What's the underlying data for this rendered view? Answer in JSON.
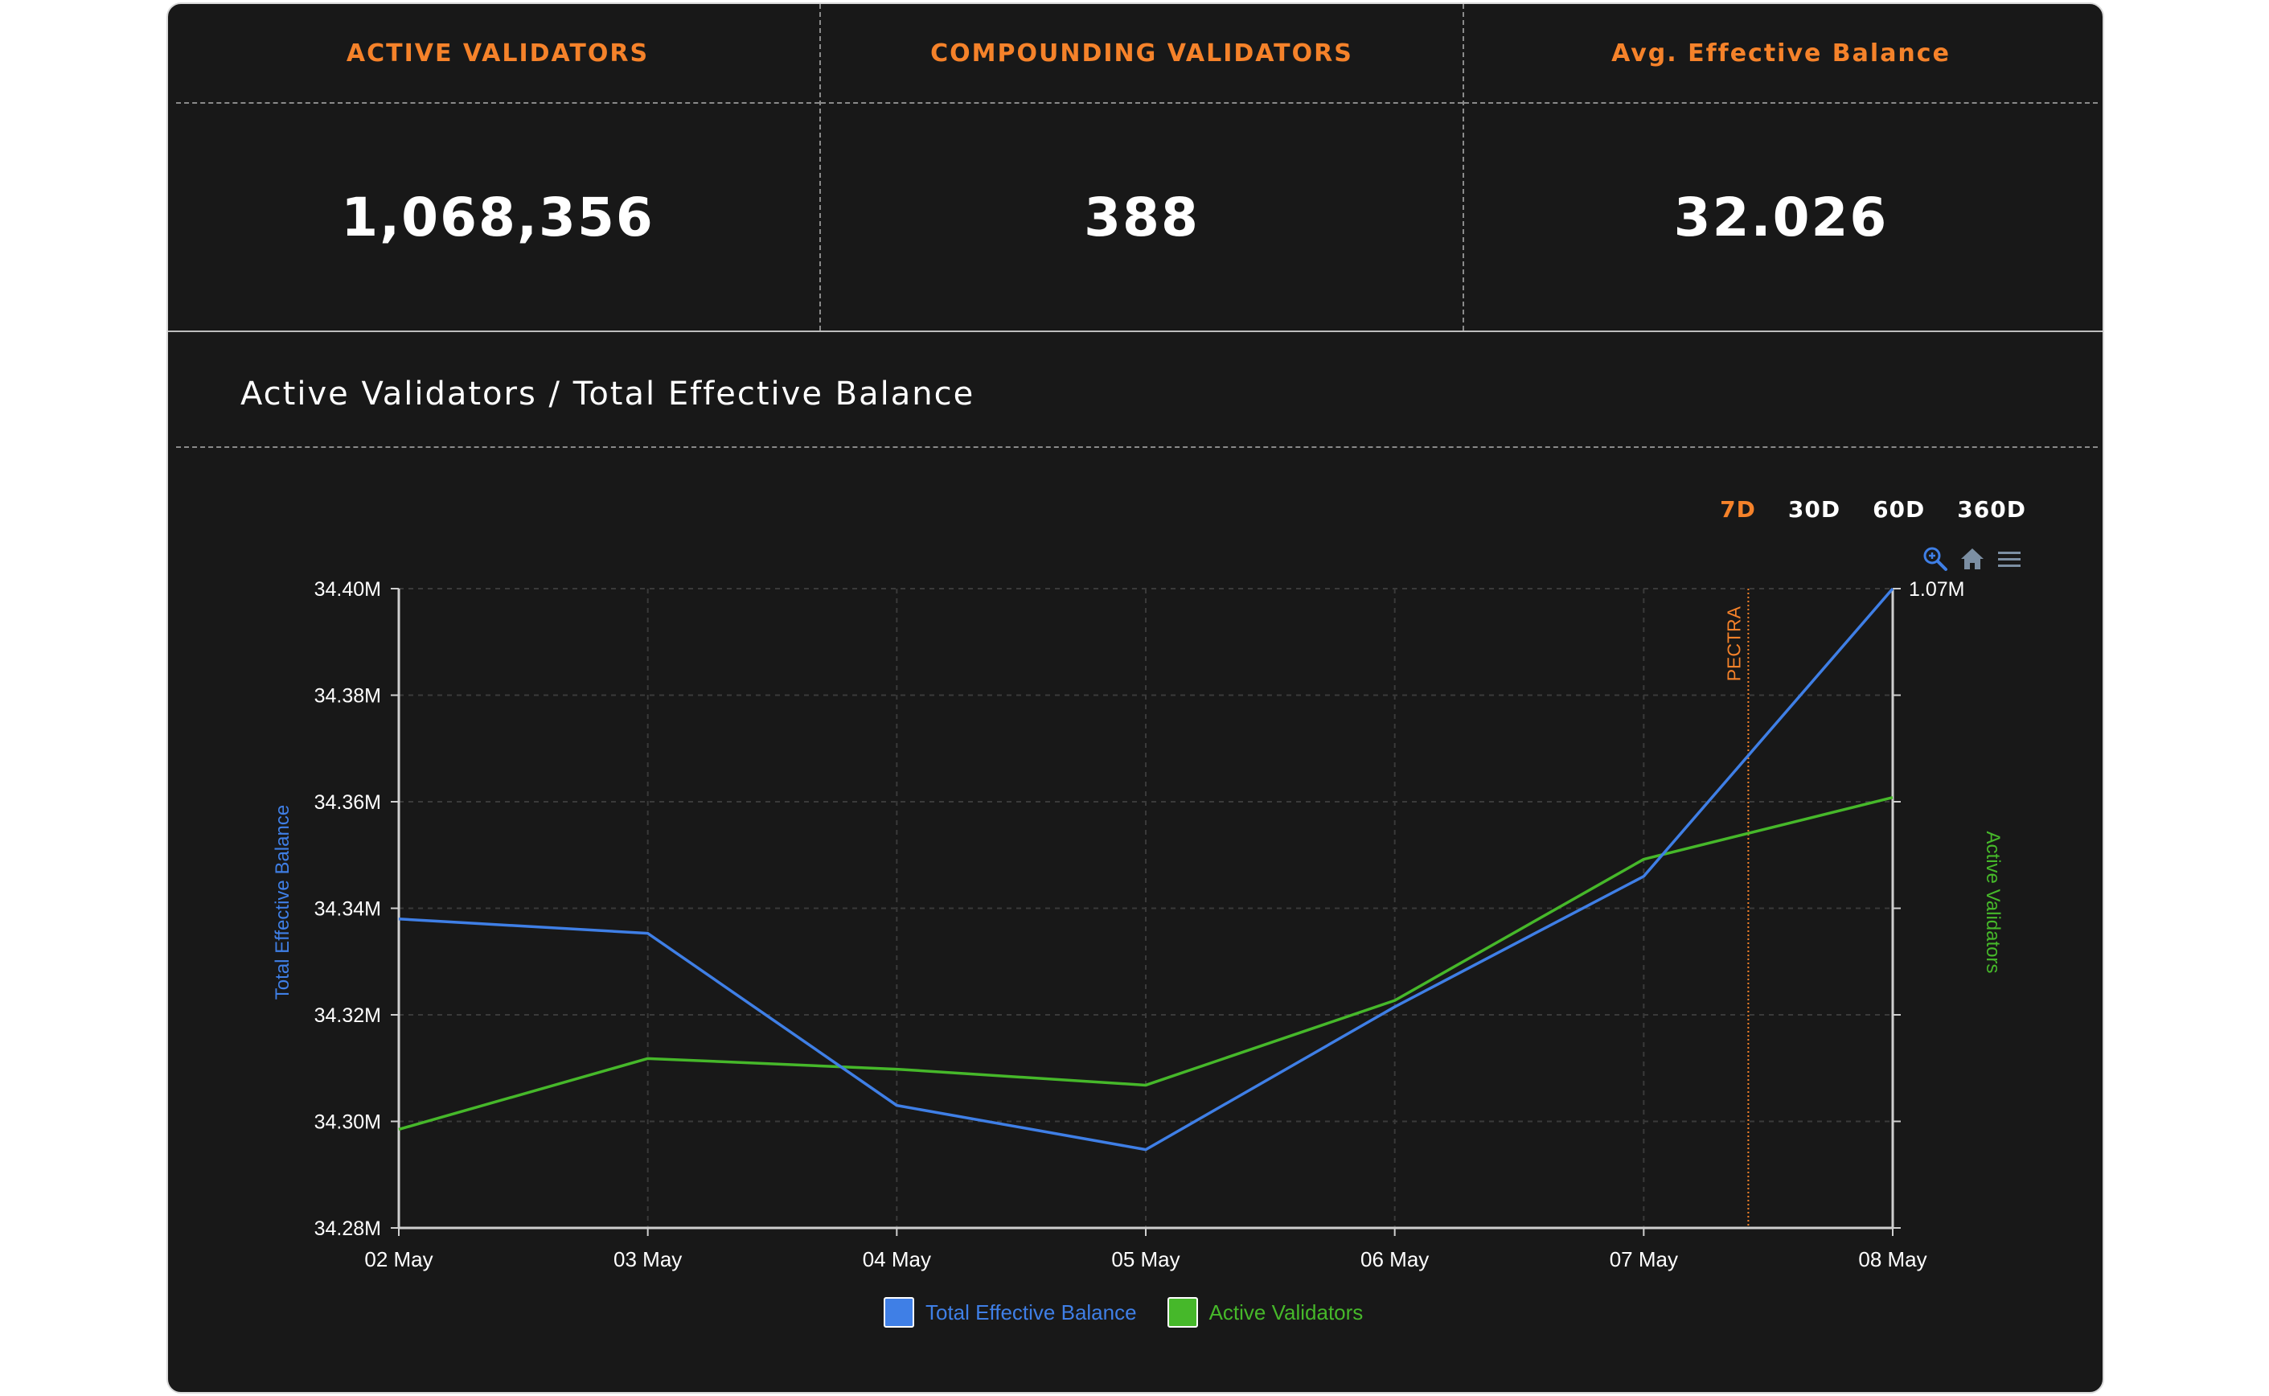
{
  "stats": [
    {
      "label": "ACTIVE  VALIDATORS",
      "value": "1,068,356"
    },
    {
      "label": "COMPOUNDING  VALIDATORS",
      "value": "388"
    },
    {
      "label": "Avg.  Effective Balance",
      "value": "32.026"
    }
  ],
  "chart_header": {
    "title": "Active Validators / Total Effective Balance"
  },
  "range_buttons": [
    "7D",
    "30D",
    "60D",
    "360D"
  ],
  "range_active": "7D",
  "toolbar": {
    "zoom_icon": "zoom-in-icon",
    "home_icon": "home-icon",
    "menu_icon": "menu-icon"
  },
  "colors": {
    "accent": "#f5822a",
    "total_effective_balance": "#3f7fe6",
    "active_validators": "#46b82a",
    "background": "#181818"
  },
  "chart_data": {
    "type": "line",
    "x": [
      "02 May",
      "03 May",
      "04 May",
      "05 May",
      "06 May",
      "07 May",
      "08 May"
    ],
    "ylabel_left": "Total Effective Balance",
    "ylabel_right": "Active Validators",
    "ylim_left": [
      34280000,
      34400000
    ],
    "y_ticks_left": [
      "34.28M",
      "34.30M",
      "34.32M",
      "34.34M",
      "34.36M",
      "34.38M",
      "34.40M"
    ],
    "y_tick_right_max": "1.07M",
    "series": [
      {
        "name": "Total Effective Balance",
        "axis": "left",
        "values": [
          34338000,
          34335300,
          34303000,
          34294700,
          34321500,
          34346000,
          34400000
        ]
      },
      {
        "name": "Active Validators",
        "axis": "right",
        "values_on_left_scale": [
          34298500,
          34311800,
          34309800,
          34306800,
          34322700,
          34349200,
          34360800
        ]
      }
    ],
    "annotations": [
      {
        "label": "PECTRA",
        "x": "07 May",
        "offset_fraction": 0.42
      }
    ],
    "grid": true,
    "legend_position": "bottom-center"
  }
}
